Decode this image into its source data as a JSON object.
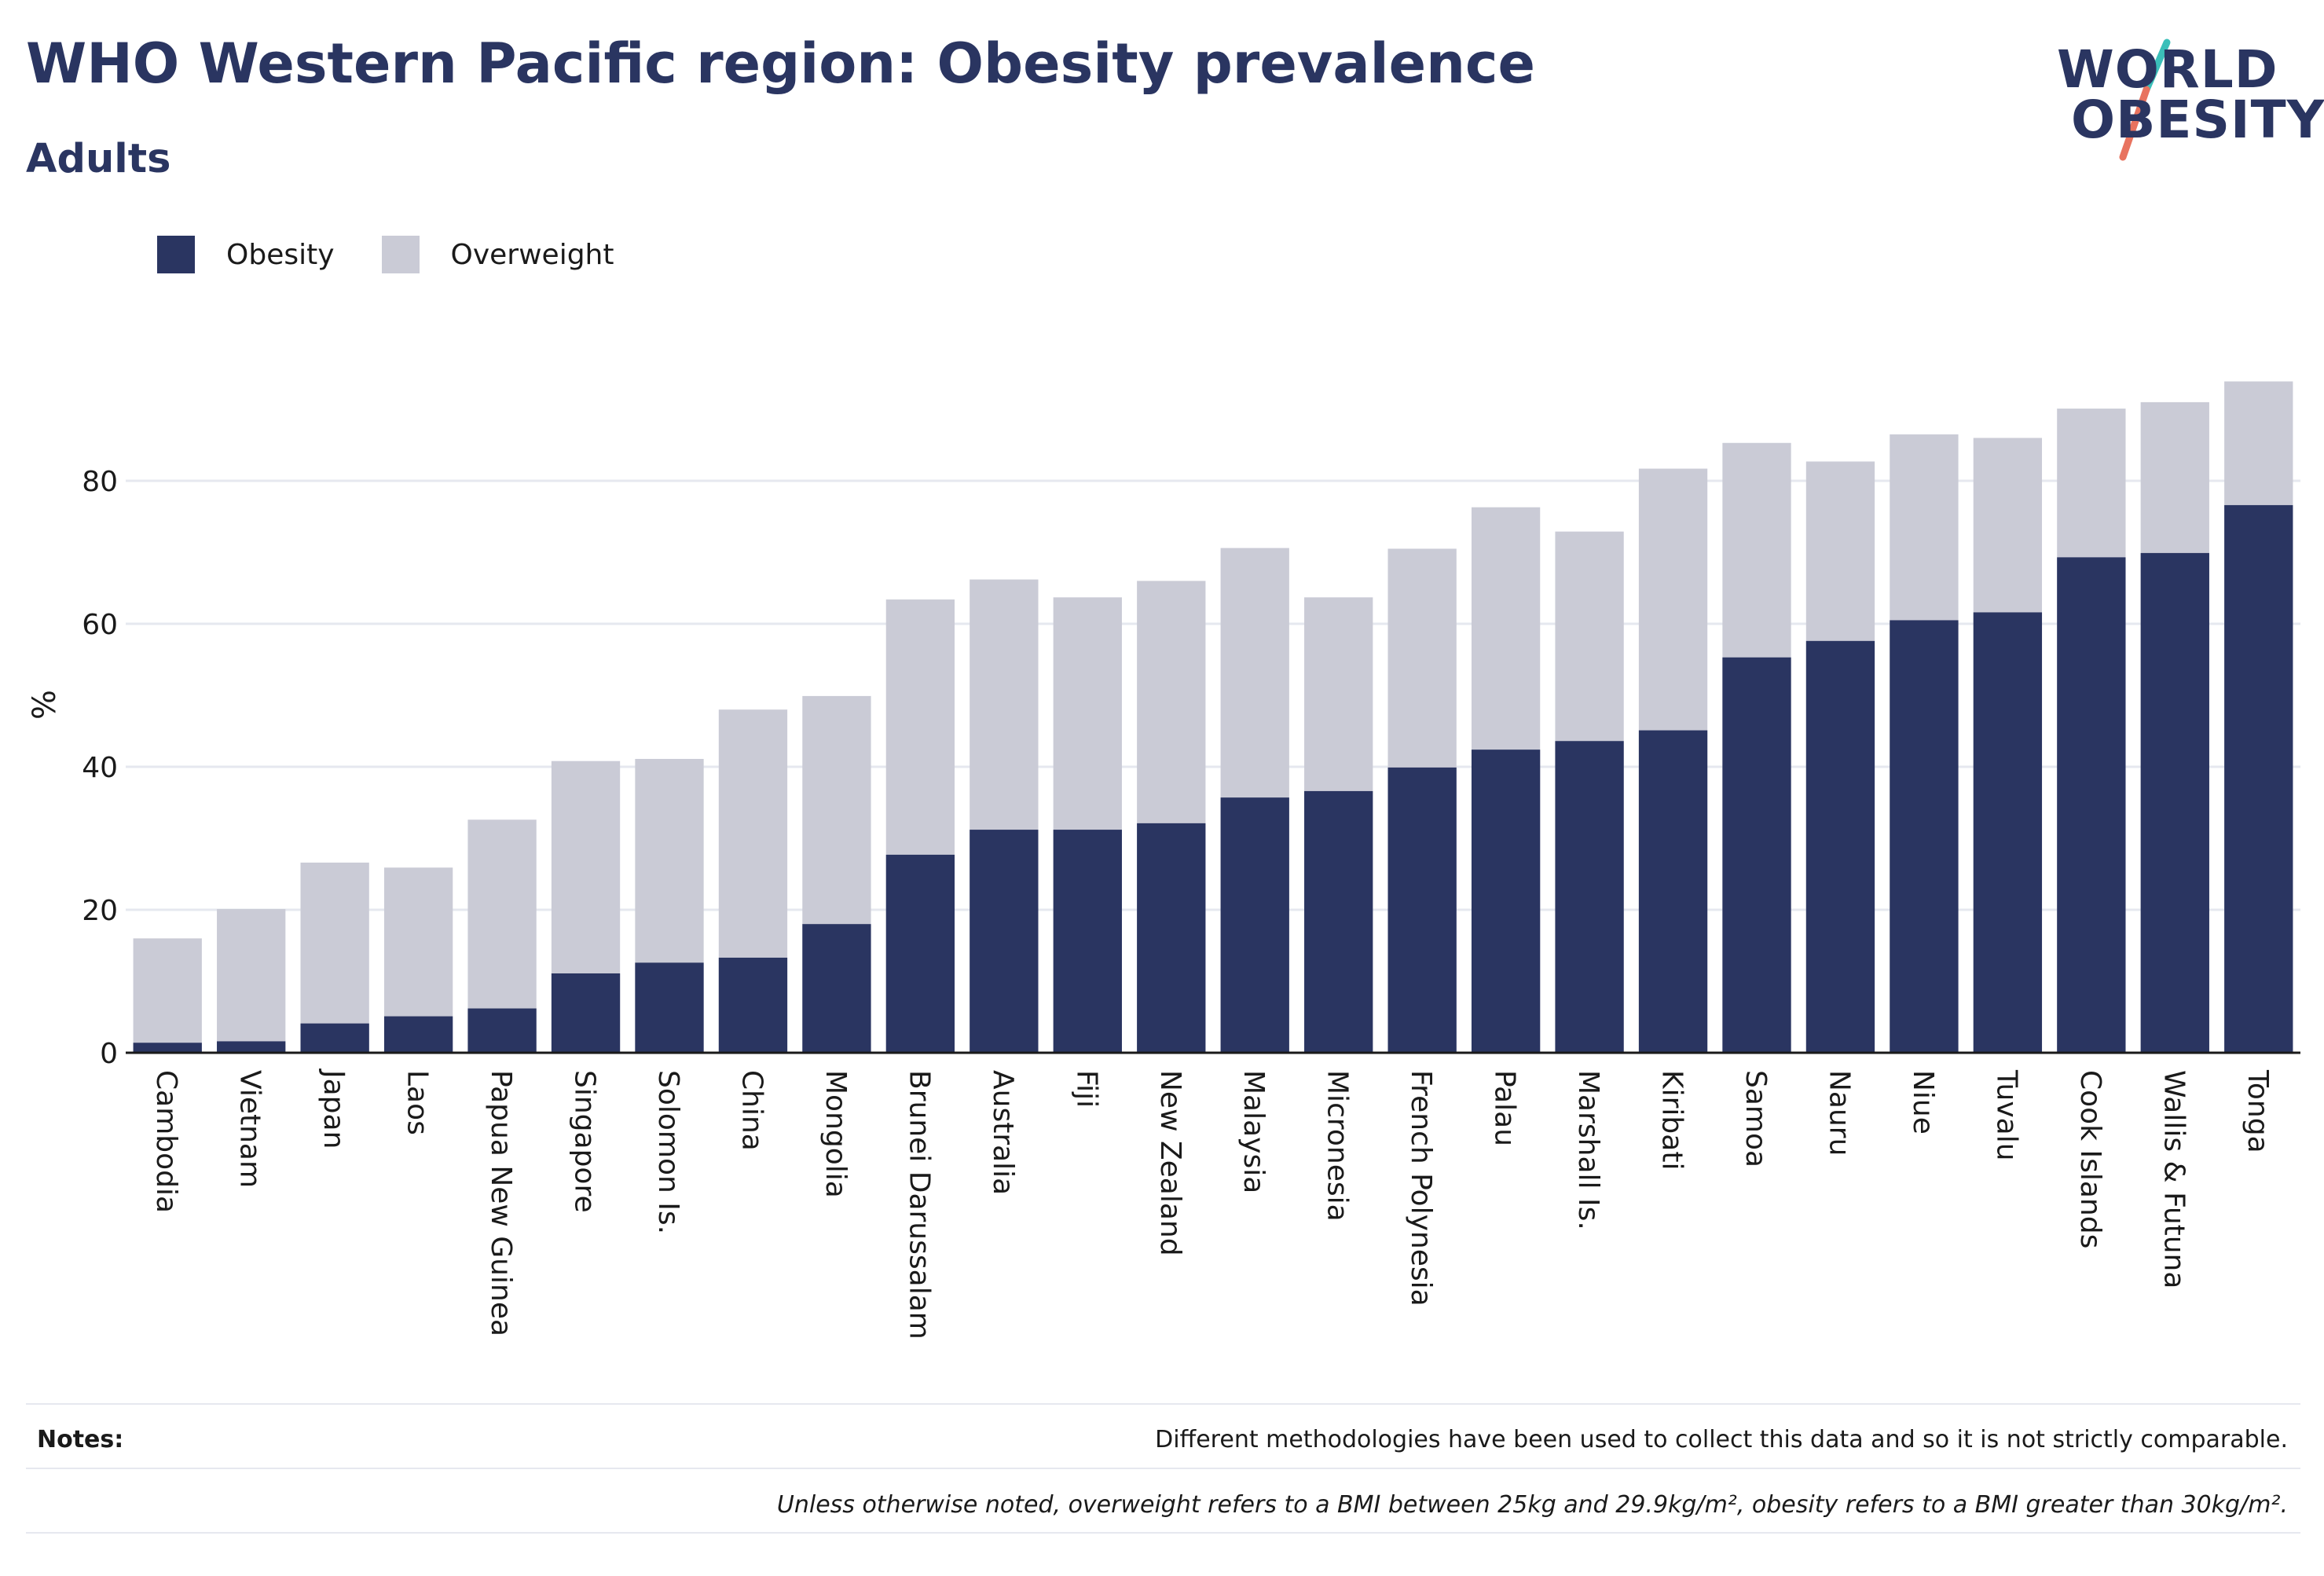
{
  "header": {
    "title": "WHO Western Pacific region: Obesity prevalence",
    "subtitle": "Adults"
  },
  "logo": {
    "line1": "WORLD",
    "line2": "OBESITY",
    "slash_colors": [
      "#3bbfb9",
      "#e8735f"
    ]
  },
  "legend": {
    "items": [
      {
        "label": "Obesity",
        "color": "#2a3561"
      },
      {
        "label": "Overweight",
        "color": "#cacbd6"
      }
    ],
    "placement": "top-left"
  },
  "chart_data": {
    "type": "bar",
    "stacked": false,
    "overlapping": true,
    "title": "WHO Western Pacific region: Obesity prevalence",
    "subtitle": "Adults",
    "xlabel": "",
    "ylabel": "%",
    "ylim": [
      0,
      100
    ],
    "yticks": [
      0,
      20,
      40,
      60,
      80
    ],
    "grid": true,
    "categories": [
      "Cambodia",
      "Vietnam",
      "Japan",
      "Laos",
      "Papua New Guinea",
      "Singapore",
      "Solomon Is.",
      "China",
      "Mongolia",
      "Brunei Darussalam",
      "Australia",
      "Fiji",
      "New Zealand",
      "Malaysia",
      "Micronesia",
      "French Polynesia",
      "Palau",
      "Marshall Is.",
      "Kiribati",
      "Samoa",
      "Nauru",
      "Niue",
      "Tuvalu",
      "Cook Islands",
      "Wallis & Futuna",
      "Tonga"
    ],
    "series": [
      {
        "name": "Overweight",
        "color": "#cacbd6",
        "values": [
          16,
          20.1,
          26.6,
          25.9,
          32.6,
          40.8,
          41.1,
          48,
          49.9,
          63.4,
          66.2,
          63.7,
          66,
          70.6,
          63.7,
          70.5,
          76.3,
          72.9,
          81.7,
          85.3,
          82.7,
          86.5,
          86,
          90.1,
          91,
          93.9
        ]
      },
      {
        "name": "Obesity",
        "color": "#2a3561",
        "values": [
          1.4,
          1.6,
          4.1,
          5.1,
          6.2,
          11.1,
          12.6,
          13.3,
          18,
          27.7,
          31.2,
          31.2,
          32.1,
          35.7,
          36.6,
          39.9,
          42.4,
          43.6,
          45.1,
          55.3,
          57.6,
          60.5,
          61.6,
          69.3,
          69.9,
          76.6
        ]
      }
    ]
  },
  "notes": {
    "label": "Notes:",
    "text": "Different methodologies have been used to collect this data and so it is not strictly comparable.",
    "definition": "Unless otherwise noted, overweight refers to a BMI between 25kg and 29.9kg/m², obesity refers to a BMI greater than 30kg/m²."
  }
}
